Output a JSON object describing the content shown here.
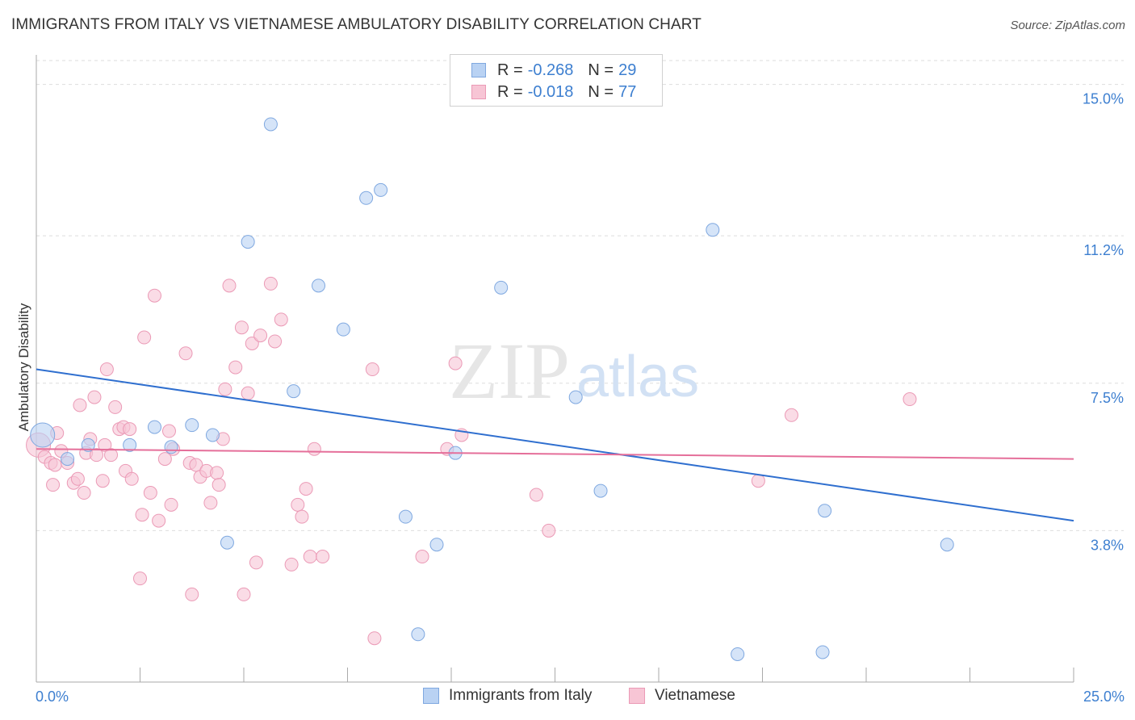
{
  "title": "IMMIGRANTS FROM ITALY VS VIETNAMESE AMBULATORY DISABILITY CORRELATION CHART",
  "source": "Source: ZipAtlas.com",
  "watermark": {
    "zip": "ZIP",
    "atlas": "atlas"
  },
  "legend": {
    "rows": [
      {
        "r_label": "R =",
        "r_value": "-0.268",
        "n_label": "N =",
        "n_value": "29"
      },
      {
        "r_label": "R =",
        "r_value": "-0.018",
        "n_label": "N =",
        "n_value": "77"
      }
    ]
  },
  "bottom_legend": {
    "series1": "Immigrants from Italy",
    "series2": "Vietnamese"
  },
  "colors": {
    "blue_fill": "#b9d2f3",
    "blue_stroke": "#7fa8e0",
    "blue_line": "#2f6fcf",
    "pink_fill": "#f7c5d5",
    "pink_stroke": "#eb9ab6",
    "pink_line": "#e56f9a",
    "grid": "#dddddd",
    "tick_text": "#3d7fd0"
  },
  "chart_data": {
    "type": "scatter",
    "title": "IMMIGRANTS FROM ITALY VS VIETNAMESE AMBULATORY DISABILITY CORRELATION CHART",
    "xlabel": "",
    "ylabel": "Ambulatory Disability",
    "xlim": [
      0,
      25
    ],
    "ylim": [
      0,
      15.6
    ],
    "x_tick_labels": [
      "0.0%",
      "25.0%"
    ],
    "y_ticks": [
      3.8,
      7.5,
      11.2,
      15.0
    ],
    "y_tick_labels": [
      "3.8%",
      "7.5%",
      "11.2%",
      "15.0%"
    ],
    "grid": true,
    "series": [
      {
        "name": "Immigrants from Italy",
        "R": -0.268,
        "N": 29,
        "trend": {
          "x": [
            0,
            25
          ],
          "y": [
            7.85,
            4.05
          ]
        },
        "points": [
          {
            "x": 0.15,
            "y": 6.2,
            "size": "large"
          },
          {
            "x": 0.75,
            "y": 5.6
          },
          {
            "x": 1.25,
            "y": 5.95
          },
          {
            "x": 2.25,
            "y": 5.95
          },
          {
            "x": 2.85,
            "y": 6.4
          },
          {
            "x": 3.25,
            "y": 5.9
          },
          {
            "x": 3.75,
            "y": 6.45
          },
          {
            "x": 4.25,
            "y": 6.2
          },
          {
            "x": 4.6,
            "y": 3.5
          },
          {
            "x": 5.1,
            "y": 11.05
          },
          {
            "x": 5.65,
            "y": 14.0
          },
          {
            "x": 6.2,
            "y": 7.3
          },
          {
            "x": 6.8,
            "y": 9.95
          },
          {
            "x": 7.4,
            "y": 8.85
          },
          {
            "x": 7.95,
            "y": 12.15
          },
          {
            "x": 8.3,
            "y": 12.35
          },
          {
            "x": 8.9,
            "y": 4.15
          },
          {
            "x": 9.2,
            "y": 1.2
          },
          {
            "x": 9.65,
            "y": 3.45
          },
          {
            "x": 10.1,
            "y": 5.75
          },
          {
            "x": 11.2,
            "y": 9.9
          },
          {
            "x": 13.0,
            "y": 7.15
          },
          {
            "x": 13.6,
            "y": 4.8
          },
          {
            "x": 16.3,
            "y": 11.35
          },
          {
            "x": 16.9,
            "y": 0.7
          },
          {
            "x": 19.0,
            "y": 4.3
          },
          {
            "x": 18.95,
            "y": 0.75
          },
          {
            "x": 21.95,
            "y": 3.45
          }
        ]
      },
      {
        "name": "Vietnamese",
        "R": -0.018,
        "N": 77,
        "trend": {
          "x": [
            0,
            25
          ],
          "y": [
            5.85,
            5.6
          ]
        },
        "points": [
          {
            "x": 0.05,
            "y": 5.95,
            "size": "large"
          },
          {
            "x": 0.2,
            "y": 5.65
          },
          {
            "x": 0.35,
            "y": 5.5
          },
          {
            "x": 0.45,
            "y": 5.45
          },
          {
            "x": 0.4,
            "y": 4.95
          },
          {
            "x": 0.5,
            "y": 6.25
          },
          {
            "x": 0.6,
            "y": 5.8
          },
          {
            "x": 0.75,
            "y": 5.5
          },
          {
            "x": 0.9,
            "y": 5.0
          },
          {
            "x": 1.0,
            "y": 5.1
          },
          {
            "x": 1.05,
            "y": 6.95
          },
          {
            "x": 1.15,
            "y": 4.75
          },
          {
            "x": 1.2,
            "y": 5.75
          },
          {
            "x": 1.3,
            "y": 6.1
          },
          {
            "x": 1.4,
            "y": 7.15
          },
          {
            "x": 1.45,
            "y": 5.7
          },
          {
            "x": 1.6,
            "y": 5.05
          },
          {
            "x": 1.65,
            "y": 5.95
          },
          {
            "x": 1.7,
            "y": 7.85
          },
          {
            "x": 1.8,
            "y": 5.7
          },
          {
            "x": 1.9,
            "y": 6.9
          },
          {
            "x": 2.0,
            "y": 6.35
          },
          {
            "x": 2.1,
            "y": 6.4
          },
          {
            "x": 2.15,
            "y": 5.3
          },
          {
            "x": 2.25,
            "y": 6.35
          },
          {
            "x": 2.3,
            "y": 5.1
          },
          {
            "x": 2.5,
            "y": 2.6
          },
          {
            "x": 2.55,
            "y": 4.2
          },
          {
            "x": 2.6,
            "y": 8.65
          },
          {
            "x": 2.75,
            "y": 4.75
          },
          {
            "x": 2.85,
            "y": 9.7
          },
          {
            "x": 2.95,
            "y": 4.05
          },
          {
            "x": 3.1,
            "y": 5.6
          },
          {
            "x": 3.2,
            "y": 6.3
          },
          {
            "x": 3.25,
            "y": 4.45
          },
          {
            "x": 3.3,
            "y": 5.85
          },
          {
            "x": 3.6,
            "y": 8.25
          },
          {
            "x": 3.7,
            "y": 5.5
          },
          {
            "x": 3.75,
            "y": 2.2
          },
          {
            "x": 3.85,
            "y": 5.45
          },
          {
            "x": 3.95,
            "y": 5.15
          },
          {
            "x": 4.1,
            "y": 5.3
          },
          {
            "x": 4.2,
            "y": 4.5
          },
          {
            "x": 4.35,
            "y": 5.25
          },
          {
            "x": 4.4,
            "y": 4.95
          },
          {
            "x": 4.5,
            "y": 6.1
          },
          {
            "x": 4.55,
            "y": 7.35
          },
          {
            "x": 4.65,
            "y": 9.95
          },
          {
            "x": 4.8,
            "y": 7.9
          },
          {
            "x": 4.95,
            "y": 8.9
          },
          {
            "x": 5.0,
            "y": 2.2
          },
          {
            "x": 5.1,
            "y": 7.25
          },
          {
            "x": 5.2,
            "y": 8.5
          },
          {
            "x": 5.3,
            "y": 3.0
          },
          {
            "x": 5.4,
            "y": 8.7
          },
          {
            "x": 5.65,
            "y": 10.0
          },
          {
            "x": 5.75,
            "y": 8.55
          },
          {
            "x": 5.9,
            "y": 9.1
          },
          {
            "x": 6.15,
            "y": 2.95
          },
          {
            "x": 6.3,
            "y": 4.45
          },
          {
            "x": 6.4,
            "y": 4.15
          },
          {
            "x": 6.5,
            "y": 4.85
          },
          {
            "x": 6.6,
            "y": 3.15
          },
          {
            "x": 6.7,
            "y": 5.85
          },
          {
            "x": 6.9,
            "y": 3.15
          },
          {
            "x": 8.15,
            "y": 1.1
          },
          {
            "x": 8.1,
            "y": 7.85
          },
          {
            "x": 9.3,
            "y": 3.15
          },
          {
            "x": 9.9,
            "y": 5.85
          },
          {
            "x": 10.1,
            "y": 8.0
          },
          {
            "x": 10.25,
            "y": 6.2
          },
          {
            "x": 12.05,
            "y": 4.7
          },
          {
            "x": 12.35,
            "y": 3.8
          },
          {
            "x": 17.4,
            "y": 5.05
          },
          {
            "x": 18.2,
            "y": 6.7
          },
          {
            "x": 21.05,
            "y": 7.1
          }
        ]
      }
    ]
  }
}
